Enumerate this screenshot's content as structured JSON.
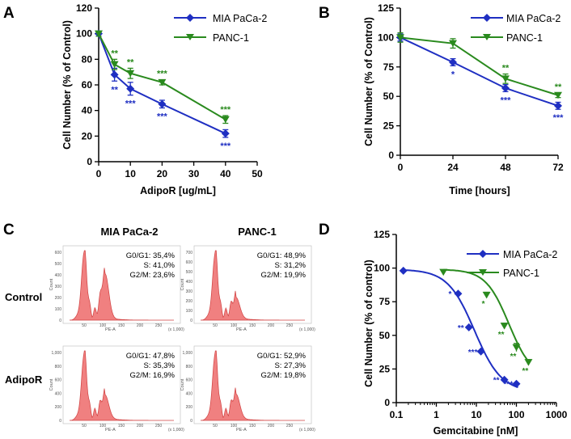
{
  "colors": {
    "mia": "#1f2fc2",
    "panc": "#2a8a1e",
    "hist": "#f08080"
  },
  "panel_labels": {
    "a": "A",
    "b": "B",
    "c": "C",
    "d": "D"
  },
  "legend": {
    "mia": "MIA PaCa-2",
    "panc": "PANC-1"
  },
  "chart_data": [
    {
      "panel": "A",
      "type": "line",
      "xlabel": "AdipoR [ug/mL]",
      "ylabel": "Cell Number (% of Control)",
      "xlim": [
        0,
        50
      ],
      "ylim": [
        0,
        120
      ],
      "xticks": [
        0,
        10,
        20,
        30,
        40,
        50
      ],
      "yticks": [
        0,
        20,
        40,
        60,
        80,
        100,
        120
      ],
      "x": [
        0,
        5,
        10,
        20,
        40
      ],
      "series": [
        {
          "name": "MIA PaCa-2",
          "values": [
            100,
            68,
            57,
            45,
            22
          ],
          "errors": [
            2,
            5,
            5,
            3,
            3
          ],
          "sig": [
            "",
            "**",
            "***",
            "***",
            "***"
          ]
        },
        {
          "name": "PANC-1",
          "values": [
            100,
            76,
            69,
            62,
            33
          ],
          "errors": [
            2,
            4,
            4,
            2,
            3
          ],
          "sig": [
            "",
            "**",
            "**",
            "***",
            "***"
          ]
        }
      ]
    },
    {
      "panel": "B",
      "type": "line",
      "xlabel": "Time [hours]",
      "ylabel": "Cell Number (% of Control)",
      "xlim": [
        0,
        72
      ],
      "ylim": [
        0,
        125
      ],
      "xticks": [
        0,
        24,
        48,
        72
      ],
      "yticks": [
        0,
        25,
        50,
        75,
        100,
        125
      ],
      "x": [
        0,
        24,
        48,
        72
      ],
      "series": [
        {
          "name": "MIA PaCa-2",
          "values": [
            100,
            79,
            57,
            42
          ],
          "errors": [
            3,
            3,
            3,
            3
          ],
          "sig": [
            "",
            "*",
            "***",
            "***"
          ]
        },
        {
          "name": "PANC-1",
          "values": [
            100,
            95,
            65,
            51
          ],
          "errors": [
            4,
            4,
            4,
            2
          ],
          "sig": [
            "",
            "",
            "**",
            "**"
          ]
        }
      ]
    },
    {
      "panel": "C",
      "type": "histogram",
      "col_titles": [
        "MIA PaCa-2",
        "PANC-1"
      ],
      "row_labels": [
        "Control",
        "AdipoR"
      ],
      "x_axis_label": "PE-A",
      "x_scale_note": "(x 1,000)",
      "y_axis_label": "Count",
      "hist_xticks": [
        "50",
        "100",
        "150",
        "200",
        "250"
      ],
      "hists": [
        {
          "id": "mia_control",
          "yticks": [
            "0",
            "100",
            "200",
            "300",
            "400",
            "500",
            "600"
          ],
          "y_scale_note": "",
          "stats": [
            "G0/G1: 35,4%",
            "S: 41,0%",
            "G2/M: 23,6%"
          ],
          "g1_peak": 0.97,
          "g2_peak": 0.62
        },
        {
          "id": "panc_control",
          "yticks": [
            "0",
            "100",
            "200",
            "300",
            "400",
            "500",
            "600",
            "700"
          ],
          "y_scale_note": "",
          "stats": [
            "G0/G1: 48,9%",
            "S: 31,2%",
            "G2/M: 19,9%"
          ],
          "g1_peak": 0.95,
          "g2_peak": 0.28
        },
        {
          "id": "mia_adipor",
          "yticks": [
            "0",
            "200",
            "400",
            "600",
            "800",
            "1,000"
          ],
          "y_scale_note": "",
          "stats": [
            "G0/G1: 47,8%",
            "S: 35,3%",
            "G2/M: 16,9%"
          ],
          "g1_peak": 0.95,
          "g2_peak": 0.32
        },
        {
          "id": "panc_adipor",
          "yticks": [
            "0",
            "200",
            "400",
            "600",
            "800",
            "1,000"
          ],
          "y_scale_note": "",
          "stats": [
            "G0/G1: 52,9%",
            "S: 27,3%",
            "G2/M: 19,8%"
          ],
          "g1_peak": 0.95,
          "g2_peak": 0.33
        }
      ]
    },
    {
      "panel": "D",
      "type": "scatter",
      "xscale": "log",
      "xlabel": "Gemcitabine [nM]",
      "ylabel": "Cell Number (% of control)",
      "xlim": [
        0.1,
        1000
      ],
      "ylim": [
        0,
        125
      ],
      "xticks": [
        0.1,
        1,
        10,
        100,
        1000
      ],
      "xticklabels": [
        "0.1",
        "1",
        "10",
        "100",
        "1000"
      ],
      "yticks": [
        0,
        25,
        50,
        75,
        100,
        125
      ],
      "series": [
        {
          "name": "MIA PaCa-2",
          "x": [
            0.15,
            3.5,
            6.5,
            13,
            50,
            100
          ],
          "values": [
            98,
            81,
            56,
            38,
            17,
            14
          ],
          "sig": [
            "",
            "*",
            "**",
            "***",
            "**",
            "***"
          ],
          "fit": {
            "top": 99,
            "bottom": 8,
            "ec50": 9,
            "hill": 1.3
          }
        },
        {
          "name": "PANC-1",
          "x": [
            1.5,
            18,
            50,
            100,
            200
          ],
          "values": [
            97,
            80,
            57,
            41,
            30
          ],
          "errors": [
            0,
            2,
            2,
            3,
            2
          ],
          "sig": [
            "",
            "*",
            "**",
            "**",
            "**"
          ],
          "fit": {
            "top": 99,
            "bottom": 18,
            "ec50": 65,
            "hill": 1.5
          }
        }
      ]
    }
  ]
}
